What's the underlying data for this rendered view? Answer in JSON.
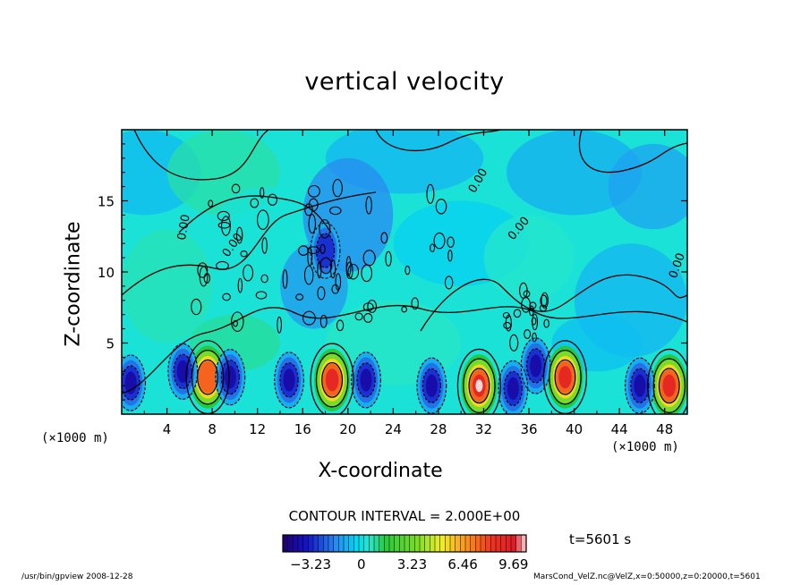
{
  "chart_data": {
    "type": "heatmap",
    "title": "vertical velocity",
    "xlabel": "X-coordinate",
    "ylabel": "Z-coordinate",
    "x_unit": "(×1000 m)",
    "xlim": [
      0,
      50
    ],
    "ylim": [
      0,
      20
    ],
    "x_ticks": [
      4,
      8,
      12,
      16,
      20,
      24,
      28,
      32,
      36,
      40,
      44,
      48
    ],
    "y_ticks": [
      5,
      10,
      15
    ],
    "contour_interval_label": "CONTOUR INTERVAL = 2.000E+00",
    "contour_line_labels": [
      "0.00",
      "0.00",
      "0.00",
      "0.00",
      "0.00"
    ],
    "colorbar": {
      "min": -5.0,
      "max": 10.5,
      "tick_values": [
        -3.23,
        0,
        3.23,
        6.46,
        9.69
      ],
      "tick_labels": [
        "−3.23",
        "0",
        "3.23",
        "6.46",
        "9.69"
      ]
    },
    "features": {
      "updrafts": [
        {
          "x": 7.6,
          "z": 2.6,
          "value": 8.0
        },
        {
          "x": 18.6,
          "z": 2.4,
          "value": 9.5
        },
        {
          "x": 31.6,
          "z": 2.0,
          "value": 9.7
        },
        {
          "x": 39.2,
          "z": 2.6,
          "value": 9.0
        },
        {
          "x": 48.4,
          "z": 2.0,
          "value": 9.5
        }
      ],
      "downdrafts": [
        {
          "x": 0.8,
          "z": 2.2,
          "value": -4.0
        },
        {
          "x": 5.4,
          "z": 3.0,
          "value": -3.8
        },
        {
          "x": 9.6,
          "z": 2.6,
          "value": -4.5
        },
        {
          "x": 14.8,
          "z": 2.4,
          "value": -4.0
        },
        {
          "x": 21.6,
          "z": 2.4,
          "value": -3.5
        },
        {
          "x": 27.4,
          "z": 2.0,
          "value": -3.8
        },
        {
          "x": 34.6,
          "z": 1.8,
          "value": -4.0
        },
        {
          "x": 36.6,
          "z": 3.4,
          "value": -4.0
        },
        {
          "x": 45.8,
          "z": 2.0,
          "value": -4.8
        },
        {
          "x": 18.0,
          "z": 11.5,
          "value": -2.5
        }
      ]
    }
  },
  "time_label": "t=5601 s",
  "footer_left": "/usr/bin/gpview   2008-12-28",
  "footer_right": "MarsCond_VelZ.nc@VelZ,x=0:50000,z=0:20000,t=5601"
}
